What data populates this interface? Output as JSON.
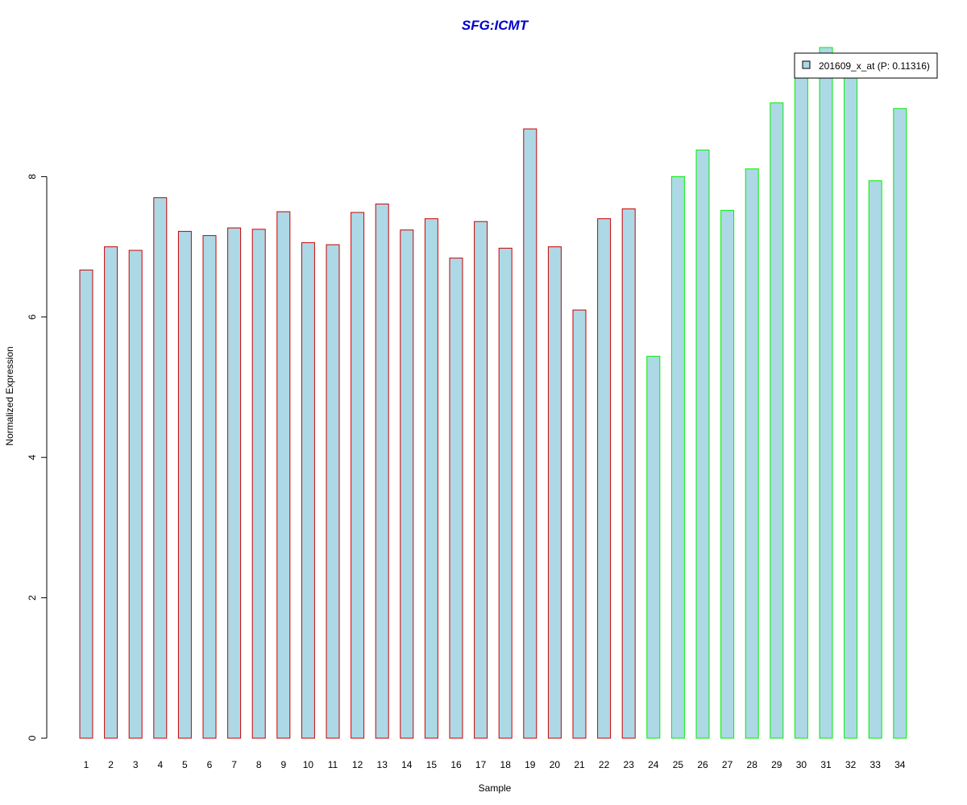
{
  "chart_data": {
    "type": "bar",
    "title": "SFG:ICMT",
    "xlabel": "Sample",
    "ylabel": "Normalized Expression",
    "ylim": [
      0,
      10
    ],
    "y_ticks": [
      0,
      2,
      4,
      6,
      8
    ],
    "categories": [
      "1",
      "2",
      "3",
      "4",
      "5",
      "6",
      "7",
      "8",
      "9",
      "10",
      "11",
      "12",
      "13",
      "14",
      "15",
      "16",
      "17",
      "18",
      "19",
      "20",
      "21",
      "22",
      "23",
      "24",
      "25",
      "26",
      "27",
      "28",
      "29",
      "30",
      "31",
      "32",
      "33",
      "34"
    ],
    "series": [
      {
        "name": "201609_x_at (P: 0.11316)",
        "values": [
          6.67,
          7.0,
          6.95,
          7.7,
          7.22,
          7.16,
          7.27,
          7.25,
          7.5,
          7.06,
          7.03,
          7.49,
          7.61,
          7.24,
          7.4,
          6.84,
          7.36,
          6.98,
          8.68,
          7.0,
          6.1,
          7.4,
          7.54,
          5.44,
          8.0,
          8.38,
          7.52,
          8.11,
          9.05,
          9.56,
          9.84,
          9.56,
          7.94,
          8.97
        ]
      }
    ],
    "group_borders": [
      "#cc0000",
      "#cc0000",
      "#cc0000",
      "#cc0000",
      "#cc0000",
      "#cc0000",
      "#cc0000",
      "#cc0000",
      "#cc0000",
      "#cc0000",
      "#cc0000",
      "#cc0000",
      "#cc0000",
      "#cc0000",
      "#cc0000",
      "#cc0000",
      "#cc0000",
      "#cc0000",
      "#cc0000",
      "#cc0000",
      "#cc0000",
      "#cc0000",
      "#cc0000",
      "#00ee00",
      "#00ee00",
      "#00ee00",
      "#00ee00",
      "#00ee00",
      "#00ee00",
      "#00ee00",
      "#00ee00",
      "#00ee00",
      "#00ee00",
      "#00ee00"
    ],
    "bar_fill": "#add8e6",
    "title_color": "#0000cc",
    "legend_position": "top-right",
    "grid": false
  }
}
